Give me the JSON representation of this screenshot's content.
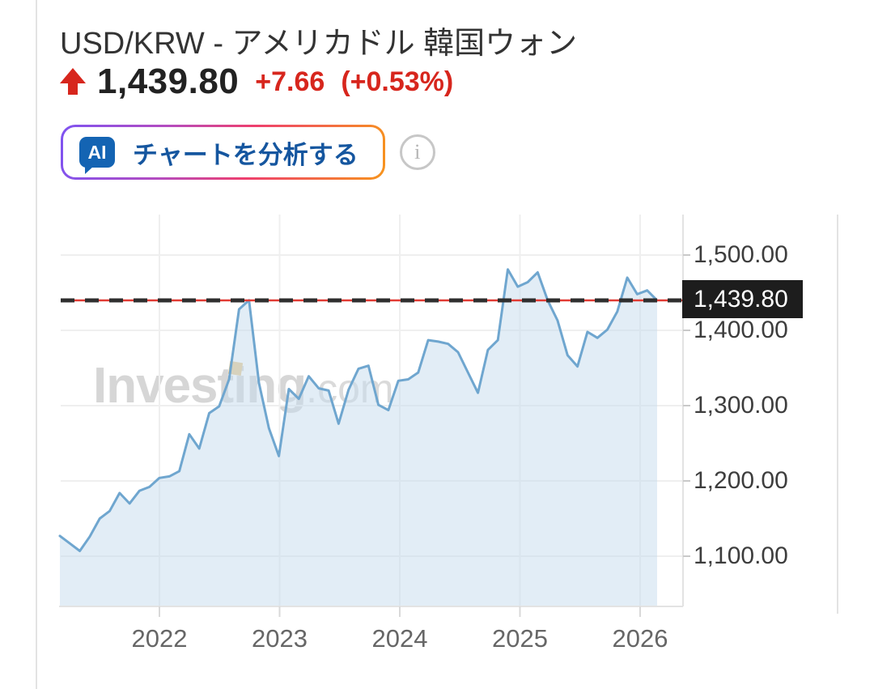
{
  "header": {
    "title": "USD/KRW - アメリカドル 韓国ウォン",
    "price": "1,439.80",
    "change": "+7.66",
    "change_percent": "(+0.53%)",
    "trend": "up",
    "accent_red": "#d7261d"
  },
  "ai_panel": {
    "badge_text": "AI",
    "button_label": "チャートを分析する",
    "badge_color": "#1464b3",
    "label_color": "#15569f",
    "border_gradient": [
      "#7e53f1",
      "#ee3f6e",
      "#f7941d"
    ],
    "info_glyph": "i"
  },
  "watermark": {
    "brand": "Investing",
    "suffix": ".com",
    "accent_color": "#e9c88d"
  },
  "chart_data": {
    "type": "area",
    "title": "USD/KRW exchange rate, monthly",
    "x_ticks": [
      "2022",
      "2023",
      "2024",
      "2025",
      "2026"
    ],
    "y_ticks": [
      {
        "label": "1,500.00",
        "value": 1500
      },
      {
        "label": "1,400.00",
        "value": 1400
      },
      {
        "label": "1,300.00",
        "value": 1300
      },
      {
        "label": "1,200.00",
        "value": 1200
      },
      {
        "label": "1,100.00",
        "value": 1100
      }
    ],
    "ylim": [
      1040,
      1550
    ],
    "grid": true,
    "legend": "none",
    "current": {
      "label": "1,439.80",
      "value": 1439.8
    },
    "series": [
      {
        "name": "USD/KRW",
        "start": "2021-03",
        "interval": "monthly",
        "values": [
          1127,
          1117,
          1107,
          1126,
          1150,
          1160,
          1184,
          1170,
          1187,
          1192,
          1204,
          1206,
          1213,
          1262,
          1243,
          1290,
          1299,
          1335,
          1428,
          1440,
          1330,
          1270,
          1233,
          1322,
          1309,
          1339,
          1323,
          1320,
          1276,
          1321,
          1349,
          1353,
          1301,
          1294,
          1333,
          1335,
          1344,
          1387,
          1385,
          1382,
          1371,
          1344,
          1317,
          1374,
          1387,
          1481,
          1458,
          1464,
          1477,
          1440,
          1413,
          1367,
          1352,
          1398,
          1390,
          1401,
          1425,
          1470,
          1448,
          1453,
          1439.8
        ]
      }
    ],
    "colors": {
      "line": "#6fa6cf",
      "fill": "rgba(198,219,238,0.5)",
      "dash_red": "#e23b34",
      "dash_dark": "#2f2f2f",
      "grid": "#efefef",
      "axis": "#e3e3e3"
    }
  }
}
